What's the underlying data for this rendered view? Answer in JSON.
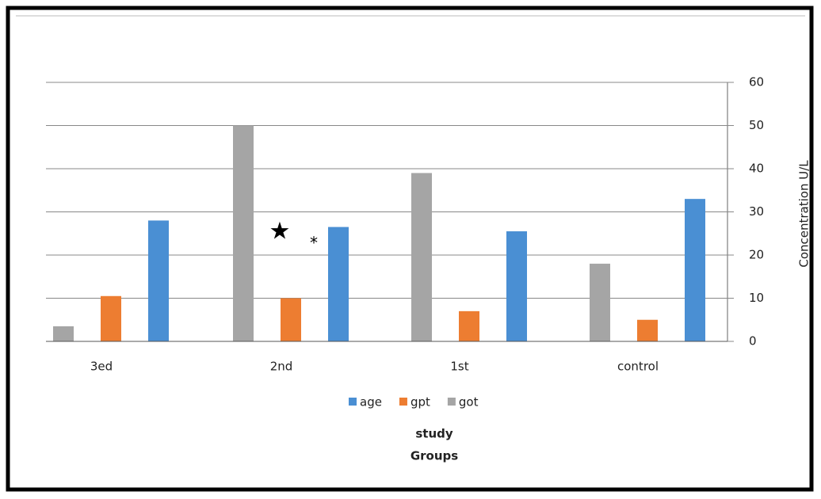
{
  "chart_data": {
    "type": "bar",
    "categories": [
      "3ed",
      "2nd",
      "1st",
      "control"
    ],
    "series": [
      {
        "name": "got",
        "color": "#a5a5a5",
        "values": [
          3.5,
          50,
          39,
          18
        ]
      },
      {
        "name": "gpt",
        "color": "#ed7d31",
        "values": [
          10.5,
          10,
          7,
          5
        ]
      },
      {
        "name": "age",
        "color": "#4a8fd3",
        "values": [
          28,
          26.5,
          25.5,
          33
        ]
      }
    ],
    "legend_order": [
      "age",
      "gpt",
      "got"
    ],
    "ylim": [
      0,
      60
    ],
    "yticks": [
      0,
      10,
      20,
      30,
      40,
      50,
      60
    ],
    "grid": true,
    "ylabel": "Concentration U/L",
    "xlabel": [
      "study",
      "Groups"
    ],
    "annotations": [
      "★",
      "*"
    ]
  }
}
